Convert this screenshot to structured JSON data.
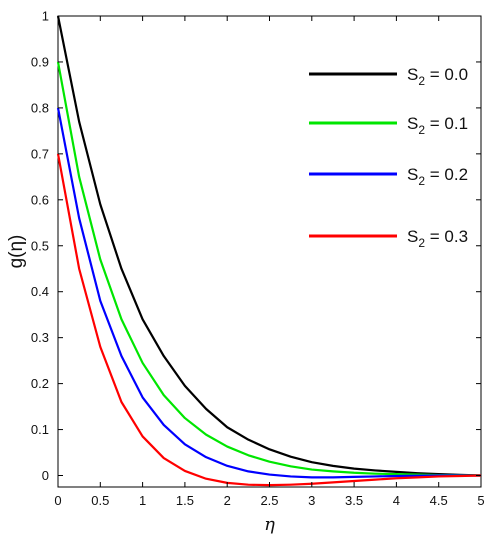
{
  "chart_data": {
    "type": "line",
    "xlabel": "η",
    "ylabel": "g(η)",
    "xlim": [
      0,
      5
    ],
    "ylim": [
      -0.025,
      1
    ],
    "grid": false,
    "legend_position": "top-right",
    "x_ticks": [
      "0",
      "0.5",
      "1",
      "1.5",
      "2",
      "2.5",
      "3",
      "3.5",
      "4",
      "4.5",
      "5"
    ],
    "y_ticks": [
      "0",
      "0.1",
      "0.2",
      "0.3",
      "0.4",
      "0.5",
      "0.6",
      "0.7",
      "0.8",
      "0.9",
      "1"
    ],
    "x": [
      0,
      0.25,
      0.5,
      0.75,
      1,
      1.25,
      1.5,
      1.75,
      2,
      2.25,
      2.5,
      2.75,
      3,
      3.25,
      3.5,
      3.75,
      4,
      4.25,
      4.5,
      4.75,
      5
    ],
    "series": [
      {
        "name": "S2 = 0.0",
        "label_main": "S",
        "label_sub": "2",
        "label_rest": " = 0.0",
        "color": "#000000",
        "values": [
          1.0,
          0.77,
          0.59,
          0.45,
          0.34,
          0.26,
          0.195,
          0.145,
          0.105,
          0.078,
          0.057,
          0.041,
          0.029,
          0.021,
          0.015,
          0.011,
          0.008,
          0.005,
          0.003,
          0.0015,
          0.0
        ]
      },
      {
        "name": "S2 = 0.1",
        "label_main": "S",
        "label_sub": "2",
        "label_rest": " = 0.1",
        "color": "#00e600",
        "values": [
          0.9,
          0.65,
          0.47,
          0.34,
          0.245,
          0.175,
          0.125,
          0.089,
          0.063,
          0.044,
          0.03,
          0.02,
          0.013,
          0.009,
          0.006,
          0.004,
          0.003,
          0.002,
          0.001,
          0.0005,
          0.0
        ]
      },
      {
        "name": "S2 = 0.2",
        "label_main": "S",
        "label_sub": "2",
        "label_rest": " = 0.2",
        "color": "#0000ff",
        "values": [
          0.8,
          0.56,
          0.38,
          0.26,
          0.17,
          0.11,
          0.068,
          0.04,
          0.021,
          0.009,
          0.002,
          -0.002,
          -0.004,
          -0.004,
          -0.003,
          -0.002,
          -0.001,
          -0.0005,
          0.0,
          0.0,
          0.0
        ]
      },
      {
        "name": "S2 = 0.3",
        "label_main": "S",
        "label_sub": "2",
        "label_rest": " = 0.3",
        "color": "#ff0000",
        "values": [
          0.7,
          0.45,
          0.28,
          0.16,
          0.085,
          0.038,
          0.01,
          -0.007,
          -0.016,
          -0.02,
          -0.021,
          -0.02,
          -0.018,
          -0.015,
          -0.012,
          -0.009,
          -0.006,
          -0.004,
          -0.002,
          -0.001,
          0.0
        ]
      }
    ]
  }
}
